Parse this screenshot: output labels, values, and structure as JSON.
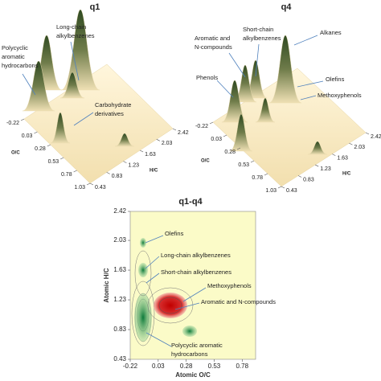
{
  "chart_data": [
    {
      "type": "surface",
      "title": "q1",
      "xlabel": "O/C",
      "ylabel": "H/C",
      "xlim": [
        -0.22,
        1.03
      ],
      "xticks": [
        -0.22,
        0.03,
        0.28,
        0.53,
        0.78,
        1.03
      ],
      "ylim": [
        0.43,
        2.42
      ],
      "yticks": [
        0.43,
        0.83,
        1.23,
        1.63,
        2.03,
        2.42
      ],
      "annotations": [
        {
          "lines": [
            "Long-chain",
            "alkylbenzenes"
          ]
        },
        {
          "lines": [
            "Polycyclic",
            "aromatic",
            "hydrocarbons"
          ]
        },
        {
          "lines": [
            "Carbohydrate",
            "derivatives"
          ]
        }
      ]
    },
    {
      "type": "surface",
      "title": "q4",
      "xlabel": "O/C",
      "ylabel": "H/C",
      "xlim": [
        -0.22,
        1.03
      ],
      "xticks": [
        -0.22,
        0.03,
        0.28,
        0.53,
        0.78,
        1.03
      ],
      "ylim": [
        0.43,
        2.42
      ],
      "yticks": [
        0.43,
        0.83,
        1.23,
        1.63,
        2.03,
        2.42
      ],
      "annotations": [
        {
          "lines": [
            "Short-chain",
            "alkylbenzenes"
          ]
        },
        {
          "lines": [
            "Alkanes"
          ]
        },
        {
          "lines": [
            "Aromatic and",
            "N-compounds"
          ]
        },
        {
          "lines": [
            "Phenols"
          ]
        },
        {
          "lines": [
            "Olefins"
          ]
        },
        {
          "lines": [
            "Methoxyphenols"
          ]
        }
      ]
    },
    {
      "type": "contour",
      "title": "q1-q4",
      "xlabel": "Atomic O/C",
      "ylabel": "Atomic H/C",
      "background": "#fbfbc8",
      "xlim": [
        -0.22,
        0.9
      ],
      "xticks": [
        -0.22,
        0.03,
        0.28,
        0.53,
        0.78
      ],
      "ylim": [
        0.43,
        2.42
      ],
      "yticks": [
        0.43,
        0.83,
        1.23,
        1.63,
        2.03,
        2.42
      ],
      "annotations": [
        {
          "lines": [
            "Olefins"
          ]
        },
        {
          "lines": [
            "Long-chain alkylbenzenes"
          ]
        },
        {
          "lines": [
            "Short-chain alkylbenzenes"
          ]
        },
        {
          "lines": [
            "Methoxyphenols"
          ]
        },
        {
          "lines": [
            "Aromatic and N-compounds"
          ]
        },
        {
          "lines": [
            "Polycyclic aromatic",
            "hydrocarbons"
          ]
        }
      ]
    }
  ]
}
